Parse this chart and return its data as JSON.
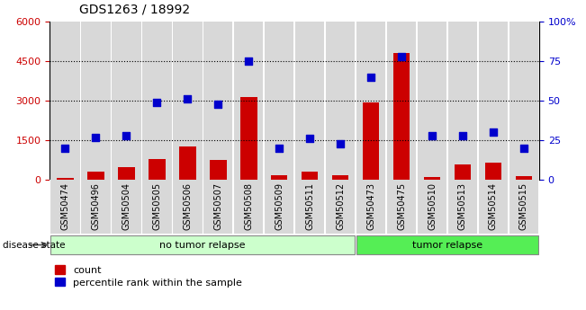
{
  "title": "GDS1263 / 18992",
  "samples": [
    "GSM50474",
    "GSM50496",
    "GSM50504",
    "GSM50505",
    "GSM50506",
    "GSM50507",
    "GSM50508",
    "GSM50509",
    "GSM50511",
    "GSM50512",
    "GSM50473",
    "GSM50475",
    "GSM50510",
    "GSM50513",
    "GSM50514",
    "GSM50515"
  ],
  "count": [
    80,
    320,
    480,
    780,
    1250,
    760,
    3150,
    180,
    320,
    180,
    2950,
    4800,
    110,
    580,
    640,
    130
  ],
  "percentile": [
    20,
    27,
    28,
    49,
    51,
    48,
    75,
    20,
    26,
    23,
    65,
    78,
    28,
    28,
    30,
    20
  ],
  "no_tumor_count": 10,
  "tumor_count": 6,
  "group_no_tumor": "no tumor relapse",
  "group_tumor": "tumor relapse",
  "disease_state_label": "disease state",
  "count_color": "#cc0000",
  "percentile_color": "#0000cc",
  "col_bg_color": "#d8d8d8",
  "no_tumor_bg": "#ccffcc",
  "tumor_bg": "#55ee55",
  "legend_count": "count",
  "legend_percentile": "percentile rank within the sample",
  "ylim_left": [
    0,
    6000
  ],
  "ylim_right": [
    0,
    100
  ],
  "yticks_left": [
    0,
    1500,
    3000,
    4500,
    6000
  ],
  "yticks_right": [
    0,
    25,
    50,
    75,
    100
  ],
  "right_tick_labels": [
    "0",
    "25",
    "50",
    "75",
    "100%"
  ],
  "grid_lines": [
    1500,
    3000,
    4500
  ]
}
